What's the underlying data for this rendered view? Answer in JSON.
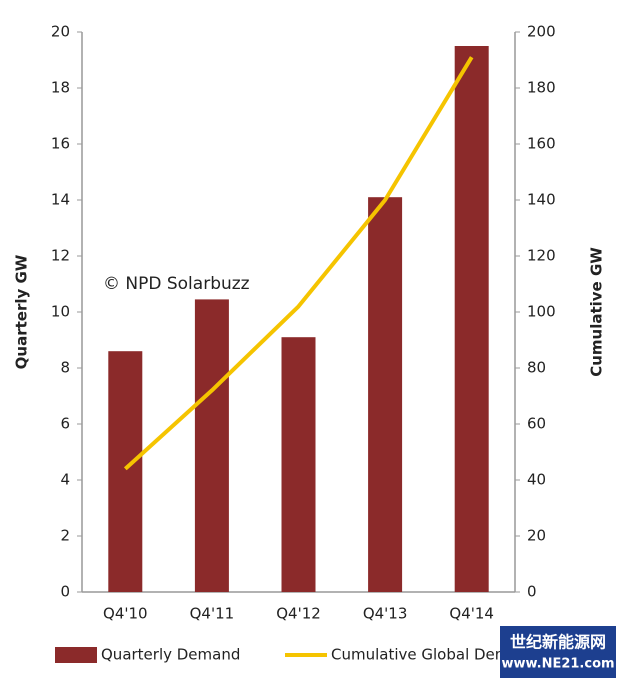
{
  "chart_data": {
    "type": "bar_line",
    "ylabel": "Quarterly GW",
    "y2label": "Cumulative GW",
    "annotation": "© NPD  Solarbuzz",
    "categories": [
      "Q4'10",
      "Q4'11",
      "Q4'12",
      "Q4'13",
      "Q4'14"
    ],
    "series": [
      {
        "name": "Quarterly Demand",
        "type": "bar",
        "color": "#8b2a2a",
        "values": [
          8.6,
          10.45,
          9.1,
          14.1,
          19.5
        ]
      },
      {
        "name": "Cumulative Global Demand",
        "type": "line",
        "axis": "y2",
        "color": "#f5c400",
        "values": [
          44,
          72,
          102,
          140,
          191
        ]
      }
    ],
    "ylim": [
      0,
      20
    ],
    "yticks": [
      0,
      2,
      4,
      6,
      8,
      10,
      12,
      14,
      16,
      18,
      20
    ],
    "y2lim": [
      0,
      200
    ],
    "y2ticks": [
      0,
      20,
      40,
      60,
      80,
      100,
      120,
      140,
      160,
      180,
      200
    ],
    "grid": false,
    "legend": "bottom"
  },
  "watermark": {
    "title": "世纪新能源网",
    "url": "www.NE21.com"
  }
}
